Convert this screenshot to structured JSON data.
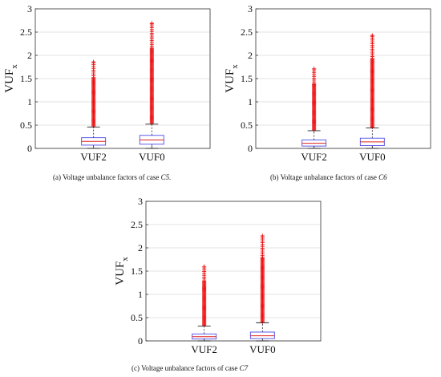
{
  "colors": {
    "box": "#4a4ae8",
    "median": "#e02020",
    "outlier": "#ee1111",
    "whisker": "#222222",
    "axis": "#333333",
    "grid": "#e3e3e3"
  },
  "chart_data": [
    {
      "type": "box",
      "ylabel": "VUF",
      "ylabel_sub": "x",
      "ylim": [
        0,
        3
      ],
      "yticks": [
        "0",
        "0.5",
        "1",
        "1.5",
        "2",
        "2.5",
        "3"
      ],
      "grid": true,
      "categories": [
        "VUF2",
        "VUF0"
      ],
      "boxes": [
        {
          "q1": 0.07,
          "median": 0.15,
          "q3": 0.23,
          "whisker_low": 0.0,
          "whisker_high": 0.46,
          "outlier_max": 1.86
        },
        {
          "q1": 0.09,
          "median": 0.18,
          "q3": 0.28,
          "whisker_low": 0.0,
          "whisker_high": 0.52,
          "outlier_max": 2.69
        }
      ],
      "caption": {
        "label": "(a)",
        "text": "Voltage unbalance factors of case",
        "case": "C5."
      }
    },
    {
      "type": "box",
      "ylabel": "VUF",
      "ylabel_sub": "x",
      "ylim": [
        0,
        3
      ],
      "yticks": [
        "0",
        "0.5",
        "1",
        "1.5",
        "2",
        "2.5",
        "3"
      ],
      "grid": true,
      "categories": [
        "VUF2",
        "VUF0"
      ],
      "boxes": [
        {
          "q1": 0.05,
          "median": 0.11,
          "q3": 0.18,
          "whisker_low": 0.0,
          "whisker_high": 0.38,
          "outlier_max": 1.71
        },
        {
          "q1": 0.06,
          "median": 0.14,
          "q3": 0.22,
          "whisker_low": 0.0,
          "whisker_high": 0.44,
          "outlier_max": 2.43
        }
      ],
      "caption": {
        "label": "(b)",
        "text": "Voltage unbalance factors of case",
        "case": "C6"
      }
    },
    {
      "type": "box",
      "ylabel": "VUF",
      "ylabel_sub": "x",
      "ylim": [
        0,
        3
      ],
      "yticks": [
        "0",
        "0.5",
        "1",
        "1.5",
        "2",
        "2.5",
        "3"
      ],
      "grid": true,
      "categories": [
        "VUF2",
        "VUF0"
      ],
      "boxes": [
        {
          "q1": 0.04,
          "median": 0.09,
          "q3": 0.15,
          "whisker_low": 0.0,
          "whisker_high": 0.32,
          "outlier_max": 1.6
        },
        {
          "q1": 0.05,
          "median": 0.11,
          "q3": 0.19,
          "whisker_low": 0.0,
          "whisker_high": 0.39,
          "outlier_max": 2.26
        }
      ],
      "caption": {
        "label": "(c)",
        "text": "Voltage unbalance factors of case",
        "case": "C7"
      }
    }
  ]
}
